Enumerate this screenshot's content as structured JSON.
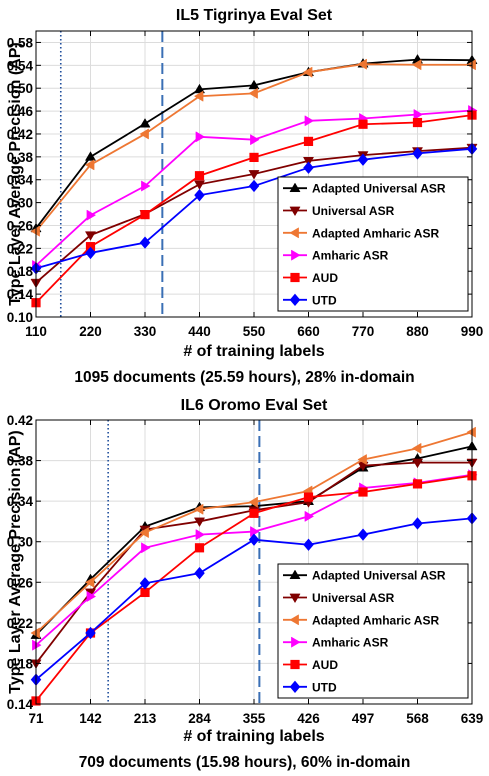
{
  "chart_data": [
    {
      "type": "line",
      "title": "IL5 Tigrinya Eval Set",
      "xlabel": "# of training labels",
      "ylabel": "Type Layer Average Precision (AP)",
      "caption": "1095 documents (25.59 hours), 28% in-domain",
      "x": [
        110,
        220,
        330,
        440,
        550,
        660,
        770,
        880,
        990
      ],
      "xlim": [
        110,
        990
      ],
      "ylim": [
        0.1,
        0.6
      ],
      "yticks": [
        "0.10",
        "0.14",
        "0.18",
        "0.22",
        "0.26",
        "0.30",
        "0.34",
        "0.38",
        "0.42",
        "0.46",
        "0.50",
        "0.54",
        "0.58"
      ],
      "xticks": [
        "110",
        "220",
        "330",
        "440",
        "550",
        "660",
        "770",
        "880",
        "990"
      ],
      "grid": true,
      "legend_position": "bottom-right",
      "vlines": [
        {
          "x": 160,
          "style": "dotted",
          "color": "#1f4e9c"
        },
        {
          "x": 365,
          "style": "dashed",
          "color": "#3a6fb5"
        }
      ],
      "series": [
        {
          "name": "Adapted Universal ASR",
          "color": "#000000",
          "marker": "triangle-up",
          "values": [
            0.255,
            0.38,
            0.438,
            0.498,
            0.505,
            0.528,
            0.543,
            0.55,
            0.549
          ]
        },
        {
          "name": "Universal ASR",
          "color": "#800000",
          "marker": "triangle-down",
          "values": [
            0.16,
            0.243,
            0.28,
            0.332,
            0.35,
            0.373,
            0.383,
            0.39,
            0.396
          ]
        },
        {
          "name": "Adapted Amharic ASR",
          "color": "#ee7733",
          "marker": "triangle-left",
          "values": [
            0.25,
            0.366,
            0.42,
            0.486,
            0.491,
            0.528,
            0.542,
            0.541,
            0.541
          ]
        },
        {
          "name": "Amharic ASR",
          "color": "#ff00ff",
          "marker": "triangle-right",
          "values": [
            0.19,
            0.278,
            0.329,
            0.415,
            0.41,
            0.443,
            0.447,
            0.454,
            0.461
          ]
        },
        {
          "name": "AUD",
          "color": "#ff0000",
          "marker": "square",
          "values": [
            0.125,
            0.223,
            0.279,
            0.347,
            0.379,
            0.407,
            0.437,
            0.44,
            0.453
          ]
        },
        {
          "name": "UTD",
          "color": "#0000ff",
          "marker": "diamond",
          "values": [
            0.185,
            0.212,
            0.23,
            0.313,
            0.329,
            0.361,
            0.375,
            0.386,
            0.394
          ]
        }
      ]
    },
    {
      "type": "line",
      "title": "IL6 Oromo Eval Set",
      "xlabel": "# of training labels",
      "ylabel": "Type Layer Average Precision (AP)",
      "caption": "709 documents (15.98 hours), 60% in-domain",
      "x": [
        71,
        142,
        213,
        284,
        355,
        426,
        497,
        568,
        639
      ],
      "xlim": [
        71,
        639
      ],
      "ylim": [
        0.14,
        0.42
      ],
      "yticks": [
        "0.14",
        "0.18",
        "0.22",
        "0.26",
        "0.30",
        "0.34",
        "0.38",
        "0.42"
      ],
      "xticks": [
        "71",
        "142",
        "213",
        "284",
        "355",
        "426",
        "497",
        "568",
        "639"
      ],
      "grid": true,
      "legend_position": "bottom-right",
      "vlines": [
        {
          "x": 165,
          "style": "dotted",
          "color": "#1f4e9c"
        },
        {
          "x": 362,
          "style": "dashed",
          "color": "#3a6fb5"
        }
      ],
      "series": [
        {
          "name": "Adapted Universal ASR",
          "color": "#000000",
          "marker": "triangle-up",
          "values": [
            0.208,
            0.263,
            0.315,
            0.334,
            0.335,
            0.34,
            0.373,
            0.382,
            0.394
          ]
        },
        {
          "name": "Universal ASR",
          "color": "#800000",
          "marker": "triangle-down",
          "values": [
            0.18,
            0.25,
            0.312,
            0.32,
            0.331,
            0.339,
            0.375,
            0.378,
            0.378
          ]
        },
        {
          "name": "Adapted Amharic ASR",
          "color": "#ee7733",
          "marker": "triangle-left",
          "values": [
            0.21,
            0.26,
            0.309,
            0.332,
            0.339,
            0.35,
            0.381,
            0.392,
            0.408
          ]
        },
        {
          "name": "Amharic ASR",
          "color": "#ff00ff",
          "marker": "triangle-right",
          "values": [
            0.198,
            0.246,
            0.294,
            0.307,
            0.31,
            0.325,
            0.353,
            0.358,
            0.366
          ]
        },
        {
          "name": "AUD",
          "color": "#ff0000",
          "marker": "square",
          "values": [
            0.143,
            0.21,
            0.25,
            0.294,
            0.328,
            0.344,
            0.349,
            0.357,
            0.365
          ]
        },
        {
          "name": "UTD",
          "color": "#0000ff",
          "marker": "diamond",
          "values": [
            0.164,
            0.21,
            0.259,
            0.269,
            0.302,
            0.297,
            0.307,
            0.318,
            0.323
          ]
        }
      ]
    }
  ]
}
